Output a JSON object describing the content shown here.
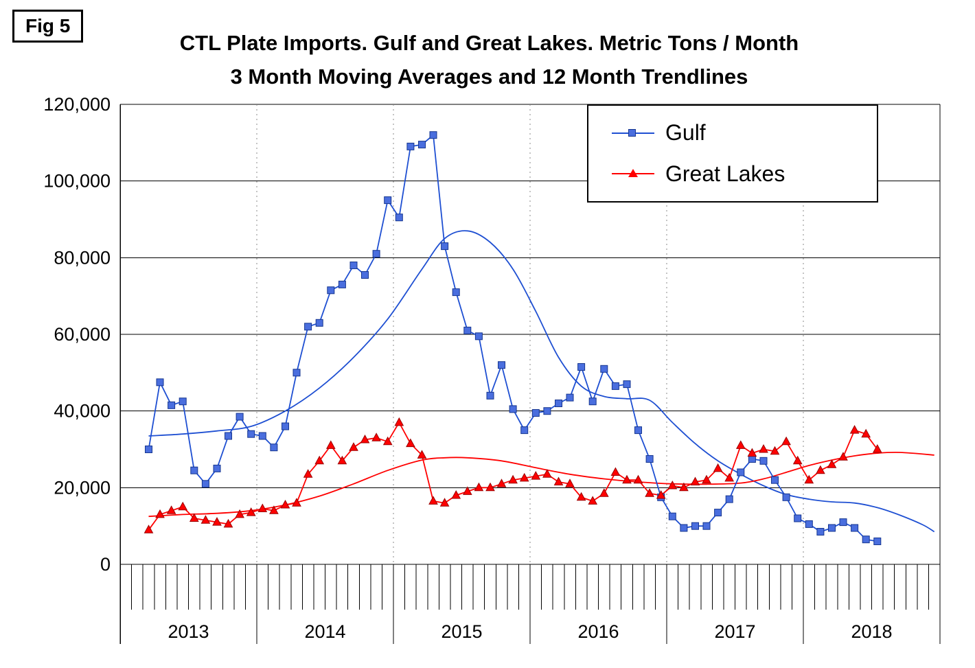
{
  "figure": {
    "label": "Fig 5"
  },
  "chart_data": {
    "type": "line",
    "title": "CTL Plate Imports. Gulf and Great Lakes. Metric Tons / Month",
    "subtitle": "3 Month Moving Averages and 12 Month Trendlines",
    "x_axis": {
      "years": [
        "2013",
        "2014",
        "2015",
        "2016",
        "2017",
        "2018"
      ],
      "months_total": 72,
      "start_of_data": "2013-03"
    },
    "y_axis": {
      "min": 0,
      "max": 120000,
      "tick_interval": 20000,
      "tick_labels": [
        "0",
        "20,000",
        "40,000",
        "60,000",
        "80,000",
        "100,000",
        "120,000"
      ]
    },
    "grid": {
      "horizontal": "solid",
      "vertical_year_separators": "dotted",
      "legend_position": "top-right"
    },
    "series": [
      {
        "id": "gulf",
        "name": "Gulf",
        "color": "#1e4fd2",
        "marker": "square",
        "marker_fill": "#4a6ede",
        "marker_edge": "#16368f",
        "start_month_index": 2,
        "values": [
          30000,
          47500,
          41500,
          42500,
          24500,
          21000,
          25000,
          33500,
          38500,
          34000,
          33500,
          30500,
          36000,
          50000,
          62000,
          63000,
          71500,
          73000,
          78000,
          75500,
          81000,
          95000,
          90500,
          109000,
          109500,
          112000,
          83000,
          71000,
          61000,
          59500,
          44000,
          52000,
          40500,
          35000,
          39500,
          40000,
          42000,
          43500,
          51500,
          42500,
          51000,
          46500,
          47000,
          35000,
          27500,
          17500,
          12500,
          9500,
          10000,
          10000,
          13500,
          17000,
          24000,
          27500,
          27000,
          22000,
          17500,
          12000,
          10500,
          8500,
          9500,
          11000,
          9500,
          6500,
          6000
        ]
      },
      {
        "id": "great-lakes",
        "name": "Great Lakes",
        "color": "#ff0000",
        "marker": "triangle",
        "marker_fill": "#ff0000",
        "marker_edge": "#990000",
        "start_month_index": 2,
        "values": [
          9000,
          13000,
          14000,
          15000,
          12000,
          11500,
          11000,
          10500,
          13000,
          13500,
          14500,
          14000,
          15500,
          16000,
          23500,
          27000,
          31000,
          27000,
          30500,
          32500,
          33000,
          32000,
          37000,
          31500,
          28500,
          16500,
          16000,
          18000,
          19000,
          20000,
          20000,
          21000,
          22000,
          22500,
          23000,
          23500,
          21500,
          21000,
          17500,
          16500,
          18500,
          24000,
          22000,
          22000,
          18500,
          18000,
          20500,
          20000,
          21500,
          22000,
          25000,
          22500,
          31000,
          29000,
          30000,
          29500,
          32000,
          27000,
          22000,
          24500,
          26000,
          28000,
          35000,
          34000,
          30000
        ]
      }
    ],
    "trendlines": [
      {
        "id": "gulf",
        "name": "Gulf 12 month trendline",
        "color": "#1e4fd2",
        "points": [
          [
            2,
            33500
          ],
          [
            5,
            34000
          ],
          [
            8,
            34800
          ],
          [
            11,
            36000
          ],
          [
            14,
            40000
          ],
          [
            17,
            46000
          ],
          [
            20,
            54000
          ],
          [
            23,
            64000
          ],
          [
            26,
            77000
          ],
          [
            28,
            85000
          ],
          [
            30,
            87000
          ],
          [
            32,
            84000
          ],
          [
            34,
            77000
          ],
          [
            36,
            66000
          ],
          [
            38,
            54000
          ],
          [
            40,
            46500
          ],
          [
            42,
            43800
          ],
          [
            44,
            43200
          ],
          [
            46,
            42800
          ],
          [
            48,
            37000
          ],
          [
            50,
            31500
          ],
          [
            52,
            27000
          ],
          [
            54,
            23500
          ],
          [
            56,
            20500
          ],
          [
            58,
            18200
          ],
          [
            60,
            17000
          ],
          [
            62,
            16300
          ],
          [
            64,
            16000
          ],
          [
            66,
            14800
          ],
          [
            68,
            12800
          ],
          [
            70,
            10300
          ],
          [
            71,
            8500
          ]
        ]
      },
      {
        "id": "great-lakes",
        "name": "Great Lakes 12 month trendline",
        "color": "#ff0000",
        "points": [
          [
            2,
            12500
          ],
          [
            5,
            13000
          ],
          [
            8,
            13300
          ],
          [
            11,
            14000
          ],
          [
            14,
            15500
          ],
          [
            17,
            17800
          ],
          [
            20,
            21000
          ],
          [
            23,
            24500
          ],
          [
            26,
            27200
          ],
          [
            28,
            27800
          ],
          [
            30,
            27800
          ],
          [
            33,
            27000
          ],
          [
            36,
            25200
          ],
          [
            39,
            23500
          ],
          [
            42,
            22300
          ],
          [
            45,
            21500
          ],
          [
            48,
            21000
          ],
          [
            51,
            20900
          ],
          [
            54,
            21200
          ],
          [
            56,
            22300
          ],
          [
            58,
            24000
          ],
          [
            60,
            25800
          ],
          [
            62,
            27200
          ],
          [
            64,
            28300
          ],
          [
            66,
            29000
          ],
          [
            68,
            29200
          ],
          [
            71,
            28500
          ]
        ]
      }
    ]
  }
}
